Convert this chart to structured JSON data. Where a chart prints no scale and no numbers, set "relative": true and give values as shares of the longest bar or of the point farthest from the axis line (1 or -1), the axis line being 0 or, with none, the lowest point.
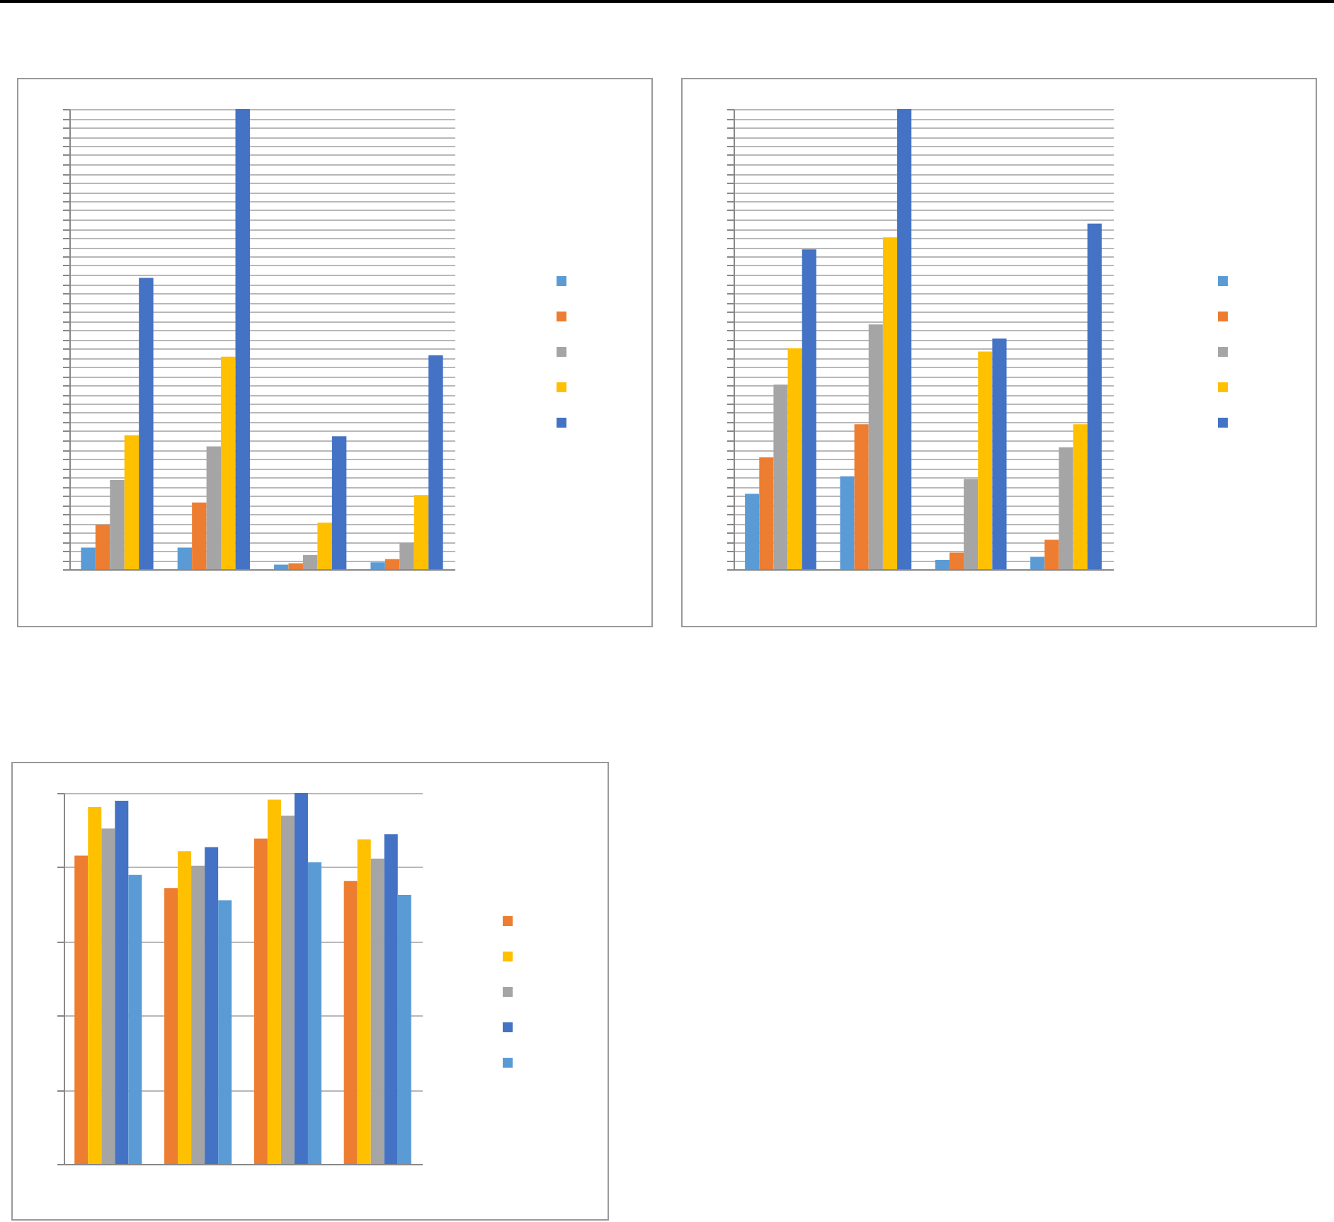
{
  "chart_data": [
    {
      "type": "bar",
      "relative": true,
      "categories": [
        null,
        null,
        null,
        null
      ],
      "grid": "y",
      "series": [
        {
          "color": "#5b9bd5",
          "values": [
            0.047,
            0.047,
            0.01,
            0.015
          ]
        },
        {
          "color": "#ed7d31",
          "values": [
            0.097,
            0.145,
            0.013,
            0.022
          ]
        },
        {
          "color": "#a5a5a5",
          "values": [
            0.194,
            0.267,
            0.031,
            0.057
          ]
        },
        {
          "color": "#ffc000",
          "values": [
            0.291,
            0.462,
            0.101,
            0.161
          ]
        },
        {
          "color": "#4472c4",
          "values": [
            0.633,
            1,
            0.289,
            0.465
          ]
        }
      ]
    },
    {
      "type": "bar",
      "relative": true,
      "categories": [
        null,
        null,
        null,
        null
      ],
      "grid": "y",
      "series": [
        {
          "color": "#5b9bd5",
          "values": [
            0.164,
            0.202,
            0.02,
            0.027
          ]
        },
        {
          "color": "#ed7d31",
          "values": [
            0.243,
            0.315,
            0.036,
            0.064
          ]
        },
        {
          "color": "#a5a5a5",
          "values": [
            0.401,
            0.532,
            0.196,
            0.265
          ]
        },
        {
          "color": "#ffc000",
          "values": [
            0.48,
            0.721,
            0.473,
            0.315
          ]
        },
        {
          "color": "#4472c4",
          "values": [
            0.695,
            1,
            0.501,
            0.751
          ]
        }
      ]
    },
    {
      "type": "bar",
      "relative": true,
      "categories": [
        null,
        null,
        null,
        null
      ],
      "grid": "y",
      "series": [
        {
          "color": "#ed7d31",
          "values": [
            0.831,
            0.744,
            0.877,
            0.763
          ]
        },
        {
          "color": "#ffc000",
          "values": [
            0.962,
            0.843,
            0.982,
            0.875
          ]
        },
        {
          "color": "#a5a5a5",
          "values": [
            0.904,
            0.804,
            0.939,
            0.823
          ]
        },
        {
          "color": "#4472c4",
          "values": [
            0.979,
            0.854,
            1,
            0.889
          ]
        },
        {
          "color": "#5b9bd5",
          "values": [
            0.779,
            0.711,
            0.813,
            0.725
          ]
        }
      ]
    }
  ]
}
